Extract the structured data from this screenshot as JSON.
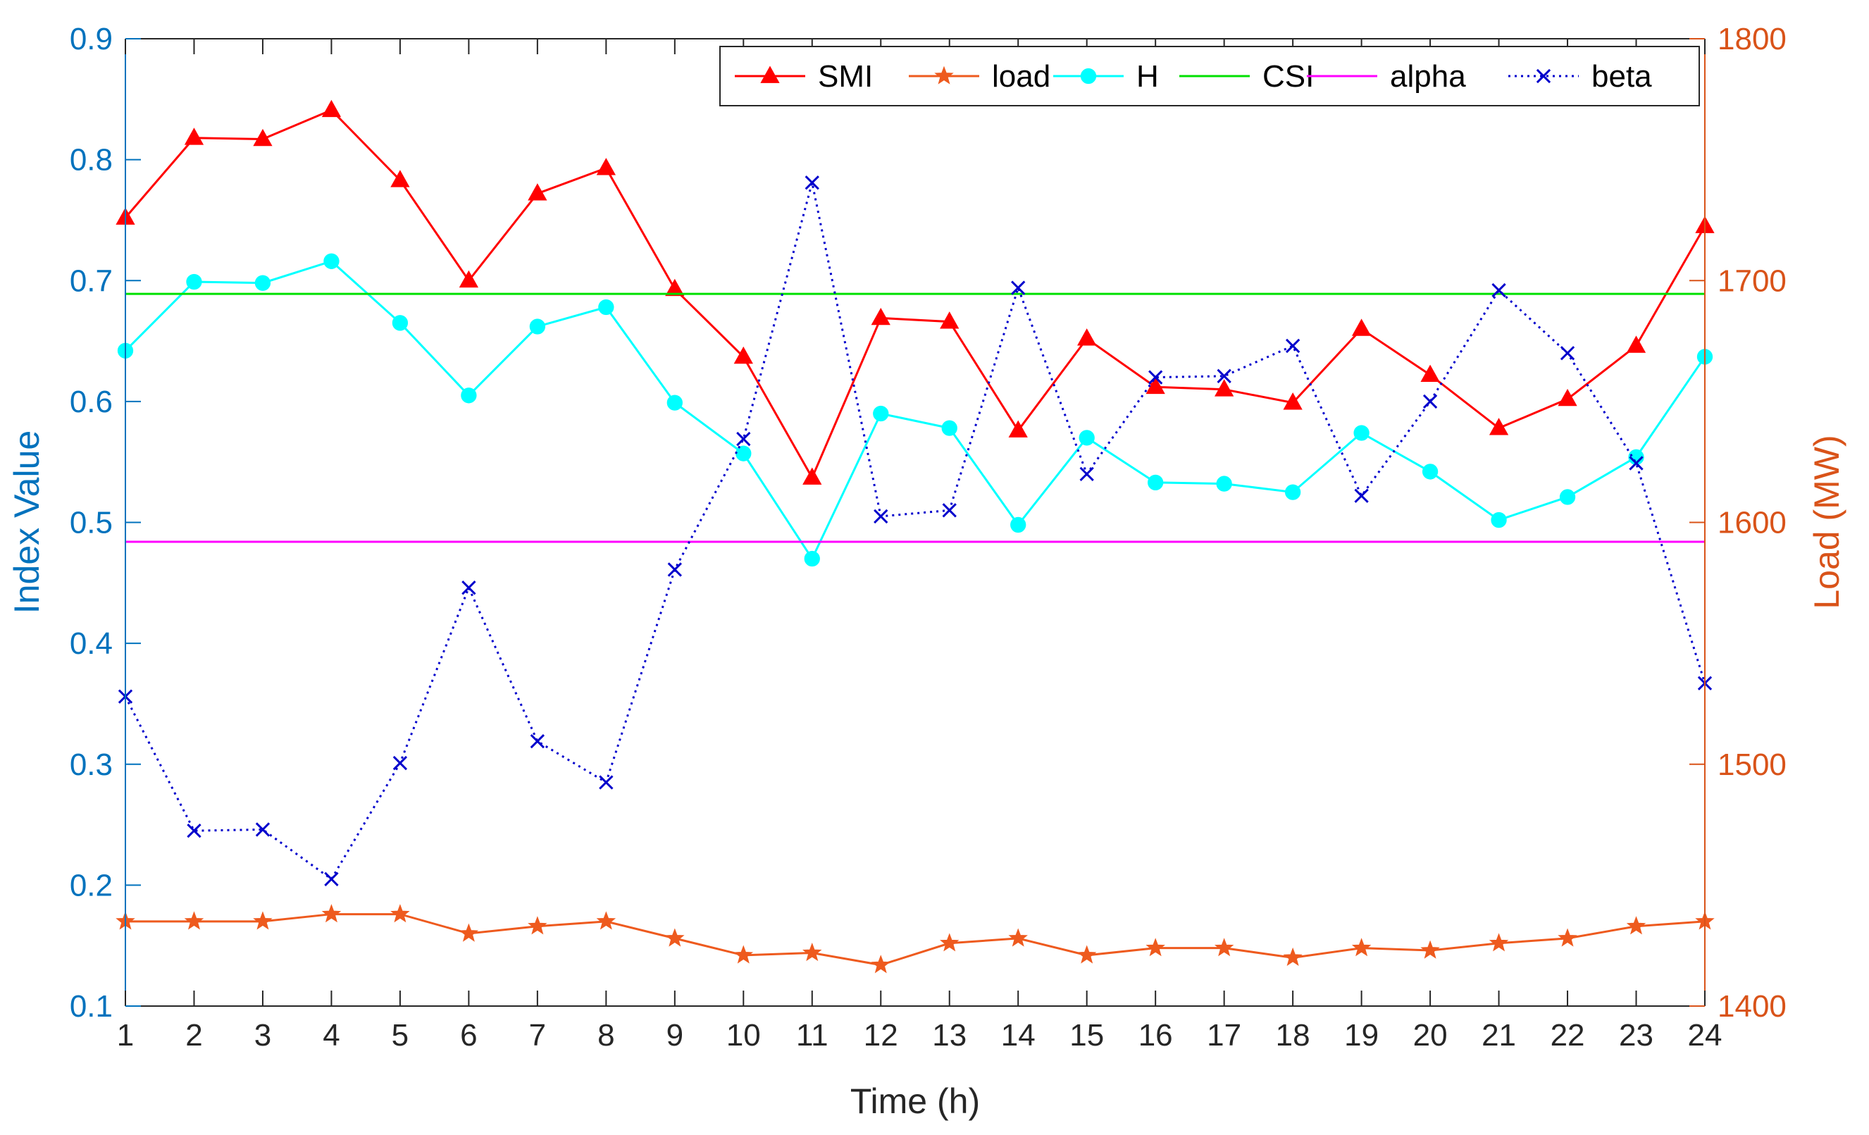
{
  "chart_data": {
    "type": "line",
    "title": "",
    "xlabel": "Time (h)",
    "ylabel_left": "Index Value",
    "ylabel_right": "Load (MW)",
    "x": [
      1,
      2,
      3,
      4,
      5,
      6,
      7,
      8,
      9,
      10,
      11,
      12,
      13,
      14,
      15,
      16,
      17,
      18,
      19,
      20,
      21,
      22,
      23,
      24
    ],
    "x_ticks": [
      "1",
      "2",
      "3",
      "4",
      "5",
      "6",
      "7",
      "8",
      "9",
      "10",
      "11",
      "12",
      "13",
      "14",
      "15",
      "16",
      "17",
      "18",
      "19",
      "20",
      "21",
      "22",
      "23",
      "24"
    ],
    "xlim": [
      1,
      24
    ],
    "ylim_left": [
      0.1,
      0.9
    ],
    "ylim_right": [
      1400,
      1800
    ],
    "yticks_left": [
      "0.1",
      "0.2",
      "0.3",
      "0.4",
      "0.5",
      "0.6",
      "0.7",
      "0.8",
      "0.9"
    ],
    "yticks_right": [
      "1400",
      "1500",
      "1600",
      "1700",
      "1800"
    ],
    "legend_position": "top-right",
    "colors": {
      "left_axis": "#0072BD",
      "right_axis": "#D95319",
      "x_axis": "#262626"
    },
    "series": [
      {
        "name": "SMI",
        "axis": "left",
        "color": "#FF0000",
        "marker": "triangle",
        "dash": "solid",
        "values": [
          0.752,
          0.818,
          0.817,
          0.841,
          0.783,
          0.7,
          0.772,
          0.793,
          0.693,
          0.637,
          0.537,
          0.669,
          0.666,
          0.576,
          0.652,
          0.612,
          0.61,
          0.599,
          0.66,
          0.622,
          0.578,
          0.602,
          0.646,
          0.745
        ]
      },
      {
        "name": "load",
        "axis": "right",
        "color": "#EE5A1E",
        "marker": "star",
        "dash": "solid",
        "values": [
          1435,
          1435,
          1435,
          1438,
          1438,
          1430,
          1433,
          1435,
          1428,
          1421,
          1422,
          1417,
          1426,
          1428,
          1421,
          1424,
          1424,
          1420,
          1424,
          1423,
          1426,
          1428,
          1433,
          1435
        ]
      },
      {
        "name": "H",
        "axis": "left",
        "color": "#00FFFF",
        "marker": "circle",
        "dash": "solid",
        "values": [
          0.642,
          0.699,
          0.698,
          0.716,
          0.665,
          0.605,
          0.662,
          0.678,
          0.599,
          0.557,
          0.47,
          0.59,
          0.578,
          0.498,
          0.57,
          0.533,
          0.532,
          0.525,
          0.574,
          0.542,
          0.502,
          0.521,
          0.554,
          0.637
        ]
      },
      {
        "name": "CSI",
        "axis": "left",
        "color": "#00E000",
        "marker": "none",
        "dash": "solid",
        "values": [
          0.689,
          0.689,
          0.689,
          0.689,
          0.689,
          0.689,
          0.689,
          0.689,
          0.689,
          0.689,
          0.689,
          0.689,
          0.689,
          0.689,
          0.689,
          0.689,
          0.689,
          0.689,
          0.689,
          0.689,
          0.689,
          0.689,
          0.689,
          0.689
        ]
      },
      {
        "name": "alpha",
        "axis": "left",
        "color": "#FF00FF",
        "marker": "none",
        "dash": "solid",
        "values": [
          0.484,
          0.484,
          0.484,
          0.484,
          0.484,
          0.484,
          0.484,
          0.484,
          0.484,
          0.484,
          0.484,
          0.484,
          0.484,
          0.484,
          0.484,
          0.484,
          0.484,
          0.484,
          0.484,
          0.484,
          0.484,
          0.484,
          0.484,
          0.484
        ]
      },
      {
        "name": "beta",
        "axis": "left",
        "color": "#0000CC",
        "marker": "x",
        "dash": "dotted",
        "values": [
          0.356,
          0.245,
          0.246,
          0.205,
          0.301,
          0.446,
          0.319,
          0.285,
          0.461,
          0.569,
          0.781,
          0.505,
          0.51,
          0.694,
          0.54,
          0.62,
          0.621,
          0.646,
          0.522,
          0.6,
          0.692,
          0.64,
          0.549,
          0.367
        ]
      }
    ]
  }
}
